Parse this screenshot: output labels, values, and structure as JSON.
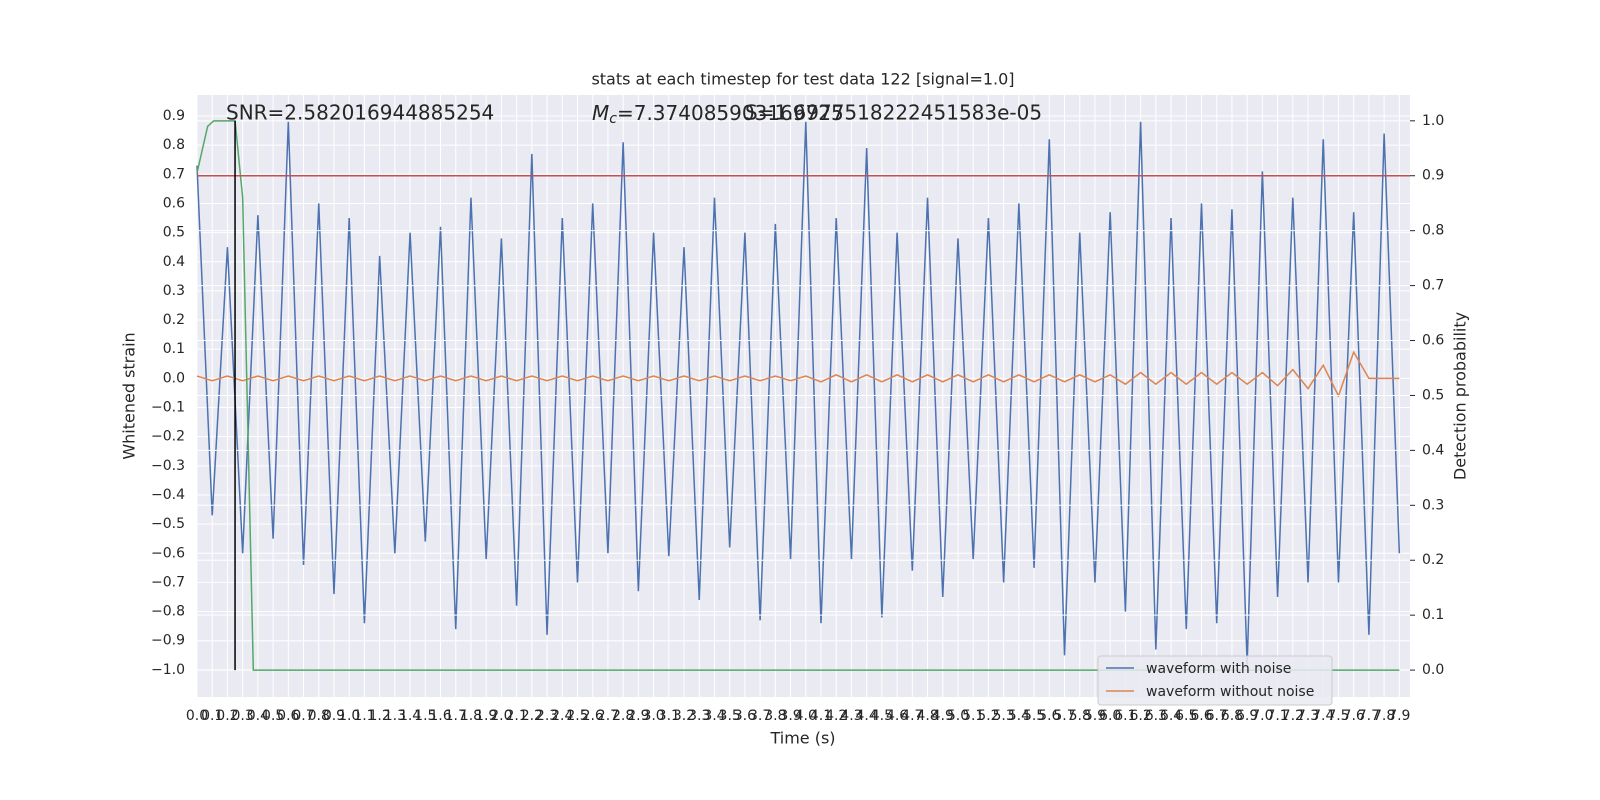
{
  "chart_data": {
    "type": "line",
    "title": "stats at each timestep for test data 122 [signal=1.0]",
    "x_label": "Time (s)",
    "y_label": "Whitened strain",
    "y2_label": "Detection probability",
    "annotations": {
      "snr": "SNR=2.582016944885254",
      "mc_symbol": "M",
      "mc_sub": "c",
      "mc_value": "=7.374085903169725",
      "s": "S=1.6977518222451583e-05"
    },
    "grid": true,
    "legend": "lower right",
    "xlim": [
      0,
      7.97
    ],
    "ylim": [
      -1.093,
      0.972
    ],
    "y2lim": [
      -0.049,
      1.047
    ],
    "xticks": [
      {
        "value": 0,
        "label": "0.0"
      },
      0.1,
      0.2,
      0.3,
      0.4,
      0.5,
      0.6,
      0.7,
      0.8,
      0.9,
      {
        "value": 1,
        "label": "1.0"
      },
      1.1,
      1.2,
      1.3,
      1.4,
      1.5,
      1.6,
      1.7,
      1.8,
      1.9,
      {
        "value": 2,
        "label": "2.0"
      },
      2.1,
      2.2,
      2.3,
      2.4,
      2.5,
      2.6,
      2.7,
      2.8,
      2.9,
      {
        "value": 3,
        "label": "3.0"
      },
      3.1,
      3.2,
      3.3,
      3.4,
      3.5,
      3.6,
      3.7,
      3.8,
      3.9,
      {
        "value": 4,
        "label": "4.0"
      },
      4.1,
      4.2,
      4.3,
      4.4,
      4.5,
      4.6,
      4.7,
      4.8,
      4.9,
      {
        "value": 5,
        "label": "5.0"
      },
      5.1,
      5.2,
      5.3,
      5.4,
      5.5,
      5.6,
      5.7,
      5.8,
      5.9,
      {
        "value": 6,
        "label": "6.0"
      },
      6.1,
      6.2,
      6.3,
      6.4,
      6.5,
      6.6,
      6.7,
      6.8,
      6.9,
      {
        "value": 7,
        "label": "7.0"
      },
      7.1,
      7.2,
      7.3,
      7.4,
      7.5,
      7.6,
      7.7,
      7.8,
      7.9
    ],
    "yticks": [
      {
        "value": -1,
        "label": "−1.0"
      },
      {
        "value": -0.9,
        "label": "−0.9"
      },
      {
        "value": -0.8,
        "label": "−0.8"
      },
      {
        "value": -0.7,
        "label": "−0.7"
      },
      {
        "value": -0.6,
        "label": "−0.6"
      },
      {
        "value": -0.5,
        "label": "−0.5"
      },
      {
        "value": -0.4,
        "label": "−0.4"
      },
      {
        "value": -0.3,
        "label": "−0.3"
      },
      {
        "value": -0.2,
        "label": "−0.2"
      },
      {
        "value": -0.1,
        "label": "−0.1"
      },
      {
        "value": 0,
        "label": "0.0"
      },
      0.1,
      0.2,
      0.3,
      0.4,
      0.5,
      0.6,
      0.7,
      0.8,
      0.9
    ],
    "y2ticks": [
      {
        "value": 0,
        "label": "0.0"
      },
      0.1,
      0.2,
      0.3,
      0.4,
      0.5,
      0.6,
      0.7,
      0.8,
      0.9,
      {
        "value": 1,
        "label": "1.0"
      }
    ],
    "x": [
      0,
      0.1,
      0.2,
      0.3,
      0.4,
      0.5,
      0.6,
      0.7,
      0.8,
      0.9,
      1,
      1.1,
      1.2,
      1.3,
      1.4,
      1.5,
      1.6,
      1.7,
      1.8,
      1.9,
      2,
      2.1,
      2.2,
      2.3,
      2.4,
      2.5,
      2.6,
      2.7,
      2.8,
      2.9,
      3,
      3.1,
      3.2,
      3.3,
      3.4,
      3.5,
      3.6,
      3.7,
      3.8,
      3.9,
      4,
      4.1,
      4.2,
      4.3,
      4.4,
      4.5,
      4.6,
      4.7,
      4.8,
      4.9,
      5,
      5.1,
      5.2,
      5.3,
      5.4,
      5.5,
      5.6,
      5.7,
      5.8,
      5.9,
      6,
      6.1,
      6.2,
      6.3,
      6.4,
      6.5,
      6.6,
      6.7,
      6.8,
      6.9,
      7,
      7.1,
      7.2,
      7.3,
      7.4,
      7.5,
      7.6,
      7.7,
      7.8,
      7.9
    ],
    "series": [
      {
        "name": "waveform with noise",
        "color": "#4c72b0",
        "values": [
          0.73,
          -0.47,
          0.45,
          -0.6,
          0.56,
          -0.55,
          0.88,
          -0.64,
          0.6,
          -0.74,
          0.55,
          -0.84,
          0.42,
          -0.6,
          0.5,
          -0.56,
          0.52,
          -0.86,
          0.62,
          -0.62,
          0.48,
          -0.78,
          0.77,
          -0.88,
          0.55,
          -0.7,
          0.6,
          -0.6,
          0.81,
          -0.73,
          0.5,
          -0.61,
          0.45,
          -0.76,
          0.62,
          -0.58,
          0.5,
          -0.83,
          0.53,
          -0.62,
          0.88,
          -0.84,
          0.55,
          -0.62,
          0.79,
          -0.82,
          0.5,
          -0.66,
          0.62,
          -0.75,
          0.48,
          -0.62,
          0.55,
          -0.7,
          0.6,
          -0.65,
          0.82,
          -0.95,
          0.5,
          -0.7,
          0.57,
          -0.8,
          0.88,
          -0.93,
          0.55,
          -0.86,
          0.6,
          -0.84,
          0.58,
          -0.98,
          0.71,
          -0.75,
          0.62,
          -0.7,
          0.82,
          -0.7,
          0.57,
          -0.88,
          0.84,
          -0.6
        ]
      },
      {
        "name": "waveform without noise",
        "color": "#dd8452",
        "values": [
          0.008,
          -0.008,
          0.008,
          -0.008,
          0.008,
          -0.008,
          0.008,
          -0.008,
          0.008,
          -0.008,
          0.008,
          -0.008,
          0.008,
          -0.008,
          0.008,
          -0.008,
          0.008,
          -0.008,
          0.008,
          -0.008,
          0.008,
          -0.008,
          0.008,
          -0.008,
          0.008,
          -0.008,
          0.008,
          -0.008,
          0.008,
          -0.008,
          0.008,
          -0.008,
          0.008,
          -0.008,
          0.008,
          -0.008,
          0.008,
          -0.008,
          0.008,
          -0.008,
          0.008,
          -0.012,
          0.012,
          -0.012,
          0.012,
          -0.012,
          0.012,
          -0.012,
          0.012,
          -0.012,
          0.012,
          -0.012,
          0.012,
          -0.012,
          0.012,
          -0.012,
          0.012,
          -0.012,
          0.012,
          -0.012,
          0.012,
          -0.02,
          0.02,
          -0.02,
          0.02,
          -0.02,
          0.02,
          -0.02,
          0.02,
          -0.02,
          0.02,
          -0.025,
          0.03,
          -0.035,
          0.045,
          -0.06,
          0.09,
          0,
          0,
          0
        ]
      },
      {
        "color": "#55a868",
        "axis": "y2",
        "x": [
          0,
          0.07,
          0.11,
          0.25,
          0.3,
          0.37,
          7.9
        ],
        "values": [
          0.905,
          0.99,
          1,
          1,
          0.86,
          0,
          0
        ]
      }
    ],
    "threshold": {
      "y2": 0.9,
      "color": "#c44e52"
    },
    "vline": {
      "x": 0.25,
      "y2": [
        0,
        1
      ],
      "color": "#000000"
    }
  }
}
